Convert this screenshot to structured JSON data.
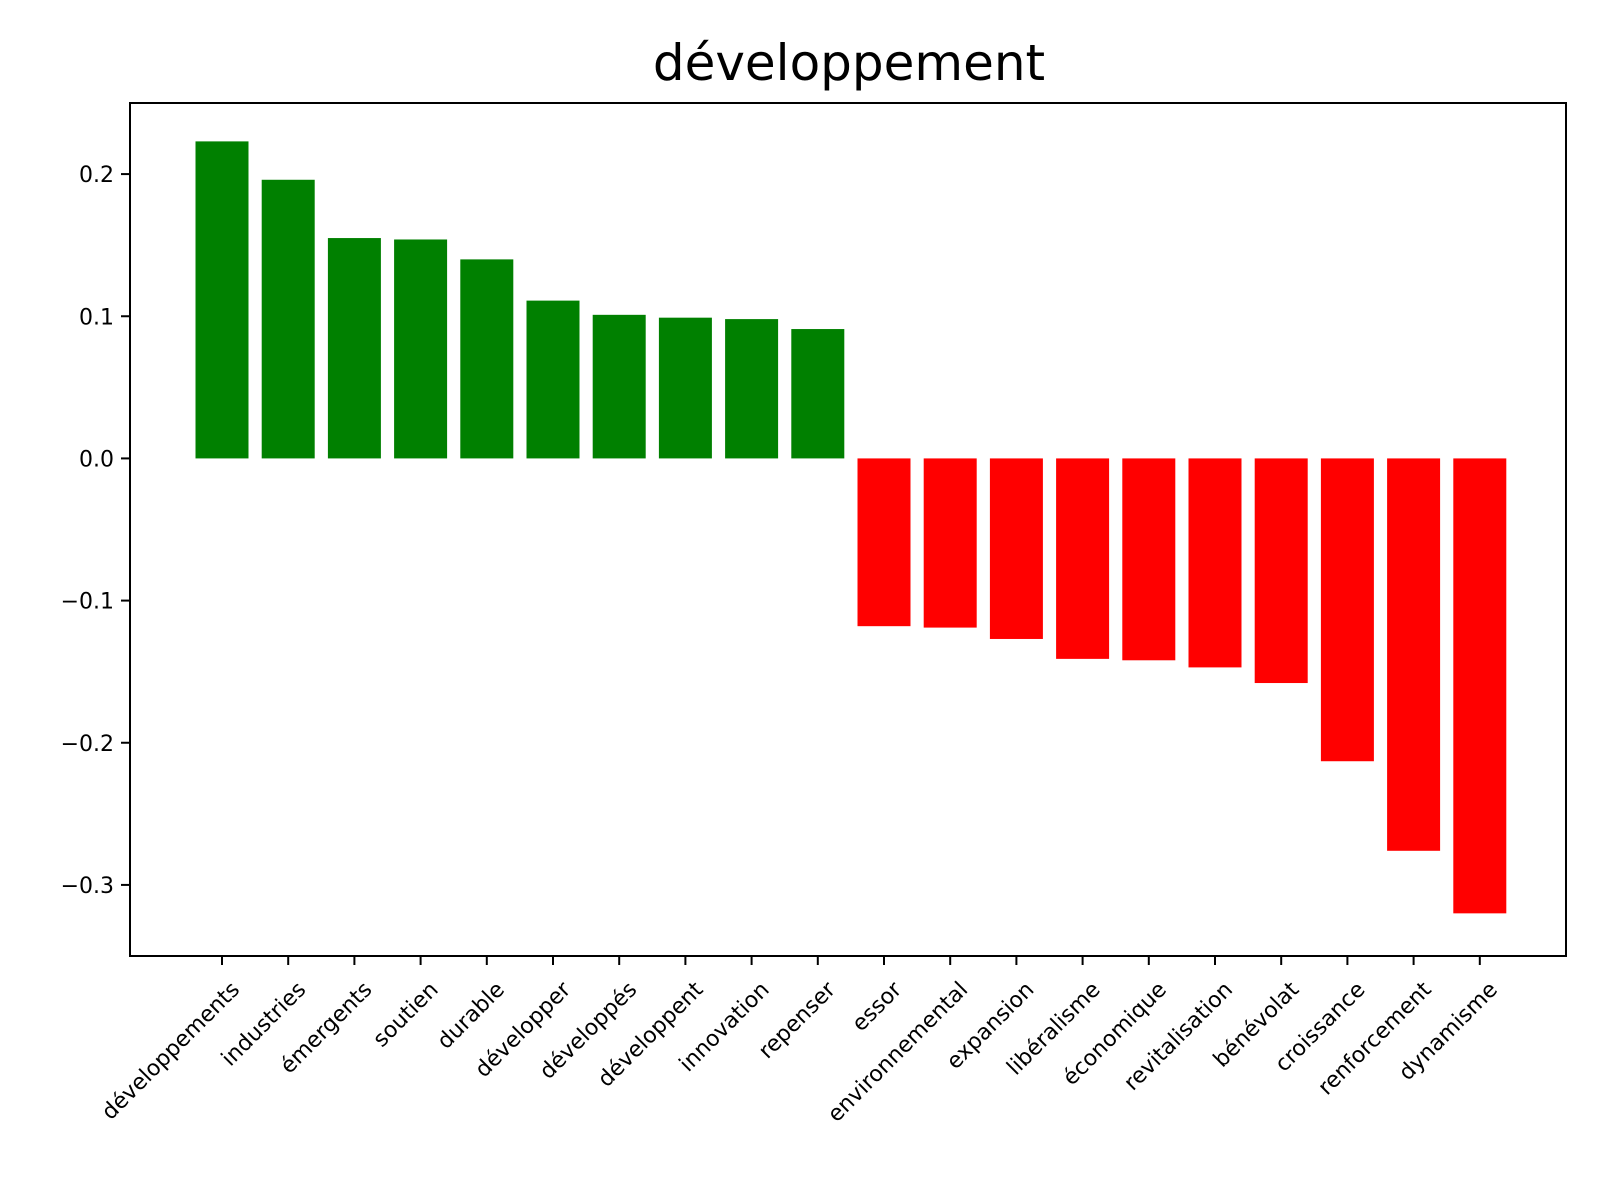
{
  "chart_data": {
    "type": "bar",
    "title": "développement",
    "xlabel": "",
    "ylabel": "",
    "ylim": [
      -0.35,
      0.25
    ],
    "yticks": [
      0.2,
      0.1,
      0.0,
      -0.1,
      -0.2,
      -0.3
    ],
    "ytick_labels": [
      "0.2",
      "0.1",
      "0.0",
      "−0.1",
      "−0.2",
      "−0.3"
    ],
    "categories": [
      "développements",
      "industries",
      "émergents",
      "soutien",
      "durable",
      "développer",
      "développés",
      "développent",
      "innovation",
      "repenser",
      "essor",
      "environnemental",
      "expansion",
      "libéralisme",
      "économique",
      "revitalisation",
      "bénévolat",
      "croissance",
      "renforcement",
      "dynamisme"
    ],
    "values": [
      0.223,
      0.196,
      0.155,
      0.154,
      0.14,
      0.111,
      0.101,
      0.099,
      0.098,
      0.091,
      -0.118,
      -0.119,
      -0.127,
      -0.141,
      -0.142,
      -0.147,
      -0.158,
      -0.213,
      -0.276,
      -0.32
    ],
    "colors": {
      "positive": "#008000",
      "negative": "#ff0000"
    },
    "grid": false,
    "legend": false
  }
}
